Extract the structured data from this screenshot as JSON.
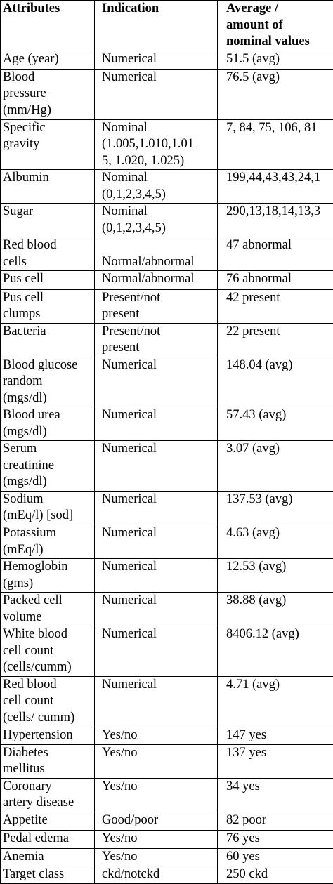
{
  "table": {
    "headers": [
      "Attributes",
      "Indication",
      "Average /\namount of\nnominal values"
    ],
    "rows": [
      [
        "Age (year)",
        "Numerical",
        "51.5 (avg)"
      ],
      [
        "Blood\npressure\n(mm/Hg)",
        "Numerical",
        "76.5 (avg)"
      ],
      [
        "Specific\ngravity",
        "Nominal\n(1.005,1.010,1.01\n5, 1.020, 1.025)",
        "7, 84, 75, 106, 81"
      ],
      [
        "Albumin",
        "Nominal\n(0,1,2,3,4,5)",
        "199,44,43,43,24,1"
      ],
      [
        "Sugar",
        "Nominal\n(0,1,2,3,4,5)",
        "290,13,18,14,13,3"
      ],
      [
        "Red blood\ncells",
        "Normal/abnormal",
        "47 abnormal"
      ],
      [
        "Pus cell",
        "Normal/abnormal",
        "76 abnormal"
      ],
      [
        "Pus cell\nclumps",
        "Present/not\npresent",
        "42 present"
      ],
      [
        "Bacteria",
        " Present/not\npresent",
        "22 present"
      ],
      [
        "Blood glucose\nrandom\n(mgs/dl)",
        "Numerical",
        "148.04 (avg)"
      ],
      [
        "Blood urea\n(mgs/dl)",
        "Numerical",
        "57.43 (avg)"
      ],
      [
        "Serum\ncreatinine\n(mgs/dl)",
        "Numerical",
        "3.07 (avg)"
      ],
      [
        "Sodium\n(mEq/l) [sod]",
        "Numerical",
        "137.53 (avg)"
      ],
      [
        "Potassium\n(mEq/l)",
        "Numerical",
        "4.63 (avg)"
      ],
      [
        "Hemoglobin\n(gms)",
        "Numerical",
        "12.53 (avg)"
      ],
      [
        "Packed cell\nvolume",
        "Numerical",
        "38.88 (avg)"
      ],
      [
        "White blood\ncell count\n(cells/cumm)",
        "Numerical",
        "8406.12 (avg)"
      ],
      [
        "Red blood\ncell count\n(cells/ cumm)",
        "Numerical",
        "4.71 (avg)"
      ],
      [
        "Hypertension",
        "Yes/no",
        "147 yes"
      ],
      [
        "Diabetes\nmellitus",
        "Yes/no",
        "137 yes"
      ],
      [
        "Coronary\nartery disease",
        "Yes/no",
        "34 yes"
      ],
      [
        "Appetite",
        "Good/poor",
        "82 poor"
      ],
      [
        "Pedal edema",
        "Yes/no",
        "76 yes"
      ],
      [
        "Anemia",
        "Yes/no",
        "60 yes"
      ],
      [
        "Target class",
        "ckd/notckd",
        "250 ckd"
      ]
    ]
  }
}
